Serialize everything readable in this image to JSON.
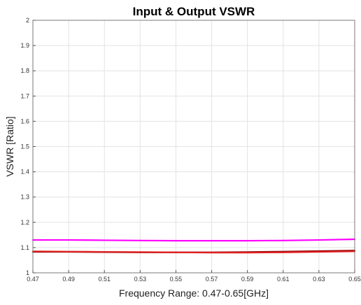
{
  "chart_data": {
    "type": "line",
    "title": "Input & Output VSWR",
    "xlabel": "Frequency Range: 0.47-0.65[GHz]",
    "ylabel": "VSWR [Ratio]",
    "xlim": [
      0.47,
      0.65
    ],
    "ylim": [
      1,
      2
    ],
    "x_ticks": [
      "0.47",
      "0.49",
      "0.51",
      "0.53",
      "0.55",
      "0.57",
      "0.59",
      "0.61",
      "0.63",
      "0.65"
    ],
    "y_ticks": [
      "1",
      "1.1",
      "1.2",
      "1.3",
      "1.4",
      "1.5",
      "1.6",
      "1.7",
      "1.8",
      "1.9",
      "2"
    ],
    "grid": true,
    "x": [
      0.47,
      0.49,
      0.51,
      0.53,
      0.55,
      0.57,
      0.59,
      0.61,
      0.63,
      0.65
    ],
    "series": [
      {
        "color": "#ff00ff",
        "values": [
          1.13,
          1.13,
          1.129,
          1.128,
          1.127,
          1.127,
          1.127,
          1.128,
          1.13,
          1.133
        ]
      },
      {
        "color": "#8b0000",
        "values": [
          1.083,
          1.083,
          1.082,
          1.081,
          1.081,
          1.081,
          1.082,
          1.084,
          1.086,
          1.088
        ]
      },
      {
        "color": "#e02020",
        "values": [
          1.085,
          1.084,
          1.083,
          1.082,
          1.081,
          1.08,
          1.08,
          1.081,
          1.083,
          1.085
        ]
      }
    ]
  }
}
